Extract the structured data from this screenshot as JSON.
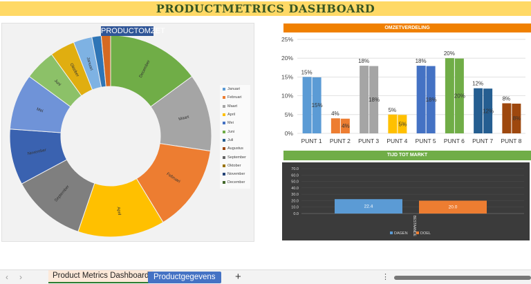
{
  "header": {
    "title": "PRODUCTMETRICS DASHBOARD"
  },
  "colors": {
    "header_bg": "#ffd966",
    "title": "#375623",
    "omzet_header": "#f08000",
    "tijd_header": "#70ad47",
    "dark_chart_bg": "#3b3b3b"
  },
  "chart_data": [
    {
      "type": "pie",
      "subtype": "donut",
      "title": "PRODUCTOMZET",
      "legend": [
        "Januari",
        "Februari",
        "Maart",
        "April",
        "Mei",
        "Juni",
        "Juli",
        "Augustus",
        "September",
        "Oktober",
        "November",
        "December"
      ],
      "legend_colors": [
        "#5b9bd5",
        "#ed7d31",
        "#a5a5a5",
        "#ffc000",
        "#4472c4",
        "#70ad47",
        "#255e91",
        "#9e480e",
        "#636363",
        "#997300",
        "#264478",
        "#43682b"
      ],
      "slices_clockwise": [
        {
          "label": "December",
          "value": 15,
          "color": "#70ad47"
        },
        {
          "label": "Maart",
          "value": 12.5,
          "color": "#a5a5a5"
        },
        {
          "label": "Februari",
          "value": 14,
          "color": "#ed7d31"
        },
        {
          "label": "April",
          "value": 14,
          "color": "#ffc000"
        },
        {
          "label": "September",
          "value": 12,
          "color": "#7f7f7f"
        },
        {
          "label": "November",
          "value": 9,
          "color": "#3a62b0"
        },
        {
          "label": "Mei",
          "value": 9,
          "color": "#6f93d8"
        },
        {
          "label": "Juni",
          "value": 5,
          "color": "#8cc168"
        },
        {
          "label": "Oktober",
          "value": 4,
          "color": "#e0ae10"
        },
        {
          "label": "Januari",
          "value": 3,
          "color": "#7eb2e3"
        },
        {
          "label": "Juli",
          "value": 1.5,
          "color": "#2e75b6"
        },
        {
          "label": "Augustus",
          "value": 1.5,
          "color": "#d56a22"
        }
      ],
      "legend_position": "right"
    },
    {
      "type": "bar",
      "title": "OMZETVERDELING",
      "categories": [
        "PUNT 1",
        "PUNT 2",
        "PUNT 3",
        "PUNT 4",
        "PUNT 5",
        "PUNT 6",
        "PUNT 7",
        "PUNT 8"
      ],
      "series": [
        {
          "values": [
            15,
            4,
            18,
            5,
            18,
            20,
            12,
            8
          ]
        },
        {
          "values": [
            15,
            4,
            18,
            5,
            18,
            20,
            12,
            8
          ]
        }
      ],
      "colors": [
        "#5b9bd5",
        "#ed7d31",
        "#a5a5a5",
        "#ffc000",
        "#4472c4",
        "#70ad47",
        "#255e91",
        "#9e480e"
      ],
      "data_labels": [
        "15%",
        "4%",
        "18%",
        "5%",
        "18%",
        "20%",
        "12%",
        "8%"
      ],
      "yticks": [
        "0%",
        "5%",
        "10%",
        "15%",
        "20%",
        "25%"
      ],
      "ylim": [
        0,
        25
      ],
      "grid": true
    },
    {
      "type": "bar",
      "title": "TIJD TOT MARKT",
      "categories": [
        "BESTAANDE"
      ],
      "series": [
        {
          "name": "DAGEN",
          "values": [
            22.4
          ],
          "color": "#5b9bd5",
          "label": "22.4"
        },
        {
          "name": "DOEL",
          "values": [
            20.0
          ],
          "color": "#ed7d31",
          "label": "20.0"
        }
      ],
      "yticks": [
        "0.0",
        "10.0",
        "20.0",
        "30.0",
        "40.0",
        "50.0",
        "60.0",
        "70.0"
      ],
      "ylim": [
        0,
        70
      ],
      "grid": true,
      "legend_position": "bottom"
    }
  ],
  "tabs": {
    "nav_prev": "‹",
    "nav_next": "›",
    "sheet1": "Product Metrics Dashboard",
    "sheet2": "Productgegevens",
    "add": "+",
    "more": "⋮"
  }
}
